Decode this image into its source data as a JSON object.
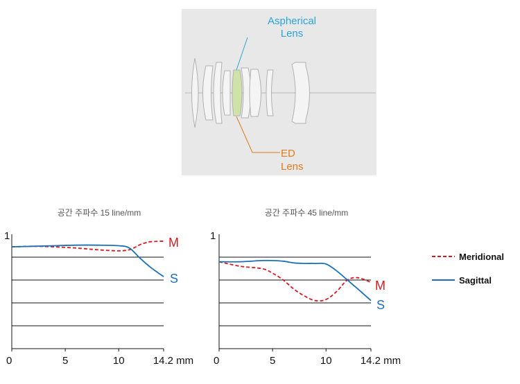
{
  "diagram": {
    "aspherical_label": [
      "Aspherical",
      "Lens"
    ],
    "ed_label": [
      "ED",
      "Lens"
    ],
    "colors": {
      "panel": "#e8e8e8",
      "aspherical": "#2aa3d8",
      "ed": "#e07b1c",
      "ed_fill": "#cfe3a8"
    }
  },
  "legend": {
    "meridional": "Meridional",
    "sagittal": "Sagittal"
  },
  "colors": {
    "meridional": "#d71920",
    "sagittal": "#1b6fb5"
  },
  "chart_data": [
    {
      "type": "line",
      "title": "공간 주파수 15 line/mm",
      "xlabel": "mm",
      "ylabel": "",
      "x_ticks": [
        "0",
        "5",
        "10",
        "14.2 mm"
      ],
      "y_label_top": "1",
      "xlim": [
        0,
        14.2
      ],
      "ylim": [
        0,
        1
      ],
      "series": [
        {
          "name": "Meridional",
          "label": "M",
          "style": "dashed",
          "x": [
            0,
            2,
            4,
            6,
            8,
            10,
            11,
            11.5,
            12,
            12.5,
            13,
            14.2
          ],
          "y": [
            0.89,
            0.895,
            0.89,
            0.88,
            0.865,
            0.855,
            0.865,
            0.885,
            0.91,
            0.925,
            0.935,
            0.94
          ]
        },
        {
          "name": "Sagittal",
          "label": "S",
          "style": "solid",
          "x": [
            0,
            2,
            4,
            6,
            8,
            10,
            11,
            12,
            13,
            14.2
          ],
          "y": [
            0.89,
            0.895,
            0.9,
            0.905,
            0.905,
            0.9,
            0.88,
            0.79,
            0.71,
            0.63
          ]
        }
      ]
    },
    {
      "type": "line",
      "title": "공간 주파수 45 line/mm",
      "xlabel": "mm",
      "ylabel": "",
      "x_ticks": [
        "0",
        "5",
        "10",
        "14.2 mm"
      ],
      "y_label_top": "1",
      "xlim": [
        0,
        14.2
      ],
      "ylim": [
        0,
        1
      ],
      "series": [
        {
          "name": "Meridional",
          "label": "M",
          "style": "dashed",
          "x": [
            0,
            2,
            4,
            5,
            6,
            7,
            8,
            9,
            10,
            11,
            12,
            13,
            14.2
          ],
          "y": [
            0.76,
            0.72,
            0.7,
            0.66,
            0.6,
            0.52,
            0.46,
            0.42,
            0.43,
            0.5,
            0.6,
            0.62,
            0.58
          ]
        },
        {
          "name": "Sagittal",
          "label": "S",
          "style": "solid",
          "x": [
            0,
            2,
            4,
            5,
            6,
            7,
            8,
            9,
            10,
            11,
            12,
            13,
            14.2
          ],
          "y": [
            0.76,
            0.76,
            0.77,
            0.77,
            0.765,
            0.75,
            0.745,
            0.745,
            0.74,
            0.68,
            0.6,
            0.52,
            0.42
          ]
        }
      ]
    }
  ]
}
